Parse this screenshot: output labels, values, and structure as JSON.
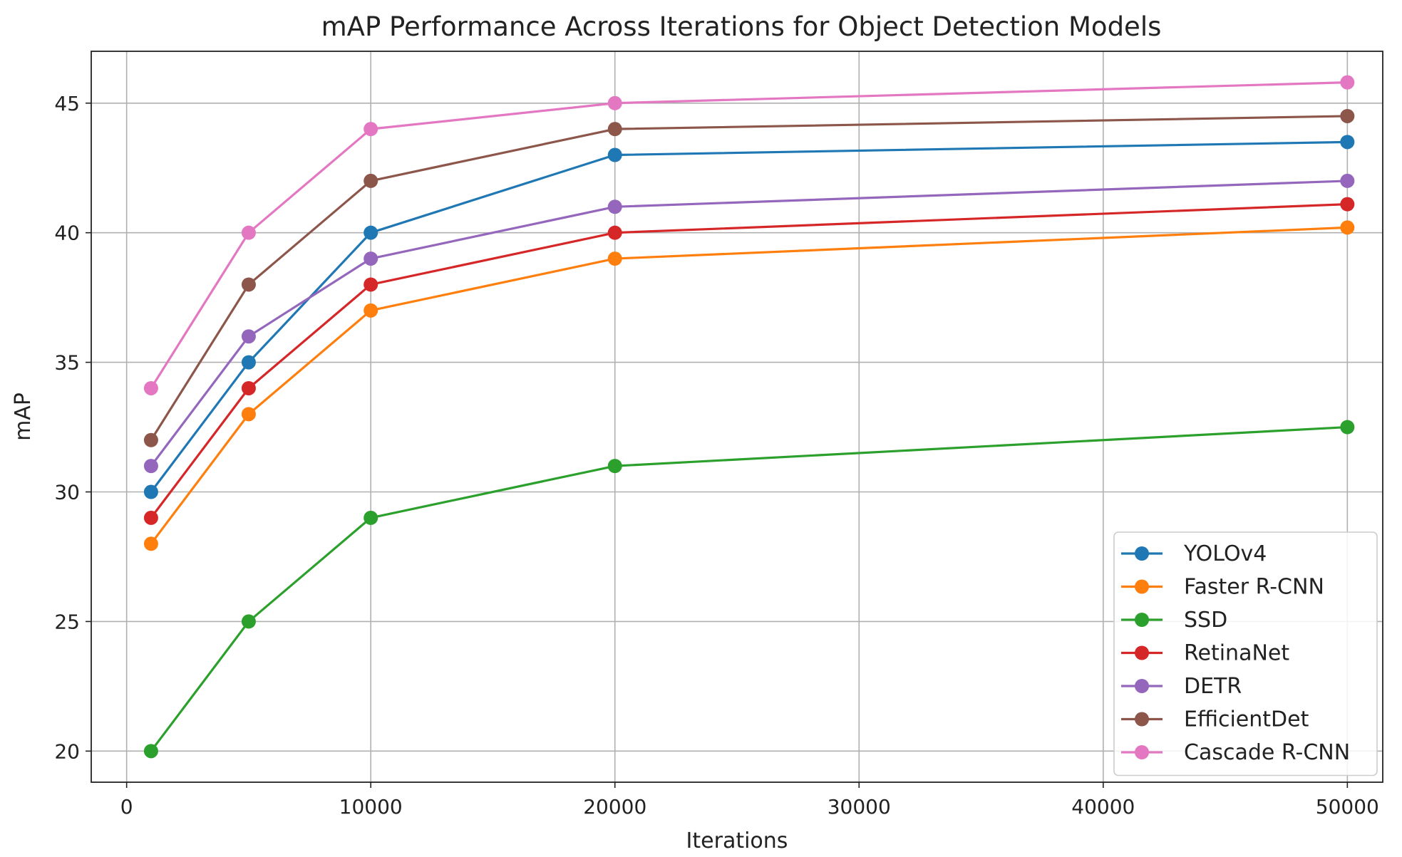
{
  "chart_data": {
    "type": "line",
    "title": "mAP Performance Across Iterations for Object Detection Models",
    "xlabel": "Iterations",
    "ylabel": "mAP",
    "x": [
      1000,
      5000,
      10000,
      20000,
      50000
    ],
    "xlim": [
      -1450,
      51450
    ],
    "ylim": [
      18.8,
      47.0
    ],
    "xticks": [
      0,
      10000,
      20000,
      30000,
      40000,
      50000
    ],
    "yticks": [
      20,
      25,
      30,
      35,
      40,
      45
    ],
    "grid": true,
    "legend_position": "lower-right",
    "marker": "circle",
    "series": [
      {
        "name": "YOLOv4",
        "color": "#1f77b4",
        "values": [
          30,
          35,
          40,
          43,
          43.5
        ]
      },
      {
        "name": "Faster R-CNN",
        "color": "#ff7f0e",
        "values": [
          28,
          33,
          37,
          39,
          40.2
        ]
      },
      {
        "name": "SSD",
        "color": "#2ca02c",
        "values": [
          20,
          25,
          29,
          31,
          32.5
        ]
      },
      {
        "name": "RetinaNet",
        "color": "#d62728",
        "values": [
          29,
          34,
          38,
          40,
          41.1
        ]
      },
      {
        "name": "DETR",
        "color": "#9467bd",
        "values": [
          31,
          36,
          39,
          41,
          42
        ]
      },
      {
        "name": "EfficientDet",
        "color": "#8c564b",
        "values": [
          32,
          38,
          42,
          44,
          44.5
        ]
      },
      {
        "name": "Cascade R-CNN",
        "color": "#e377c2",
        "values": [
          34,
          40,
          44,
          45,
          45.8
        ]
      }
    ]
  }
}
